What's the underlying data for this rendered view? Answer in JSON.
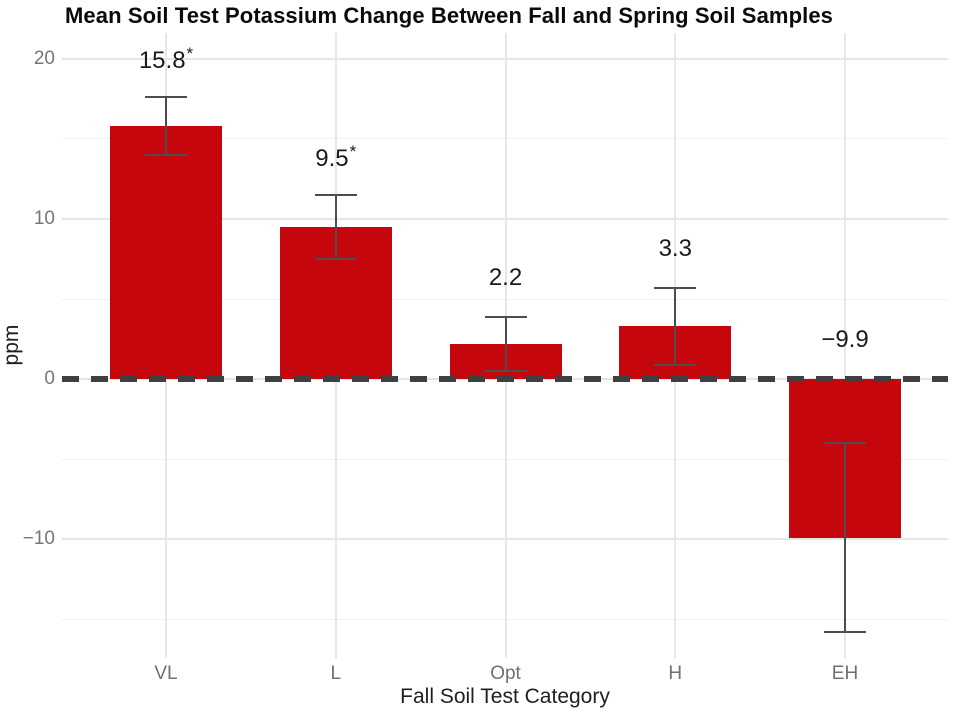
{
  "chart_data": {
    "type": "bar",
    "title": "Mean Soil Test Potassium Change Between Fall and Spring Soil Samples",
    "xlabel": "Fall Soil Test Category",
    "ylabel": "ppm",
    "categories": [
      "VL",
      "L",
      "Opt",
      "H",
      "EH"
    ],
    "values": [
      15.8,
      9.5,
      2.2,
      3.3,
      -9.9
    ],
    "value_labels": [
      "15.8",
      "9.5",
      "2.2",
      "3.3",
      "−9.9"
    ],
    "significance": [
      true,
      true,
      false,
      false,
      false
    ],
    "error_low": [
      14.0,
      7.5,
      0.5,
      0.9,
      -15.8
    ],
    "error_high": [
      17.6,
      11.5,
      3.9,
      5.7,
      -4.0
    ],
    "yticks": [
      20,
      10,
      0,
      -10
    ],
    "ytick_labels": [
      "20",
      "10",
      "0",
      "−10"
    ],
    "yticks_minor": [
      15,
      5,
      -5,
      -15
    ],
    "ylim": [
      -17.4,
      21.6
    ],
    "grid": "major+minor horizontal, major vertical at categories",
    "legend": "none",
    "bar_color": "#c5070d",
    "errorbar_color": "#4d4d4d",
    "zero_line_color": "#3f3f3f",
    "zero_line_style": "dashed"
  }
}
